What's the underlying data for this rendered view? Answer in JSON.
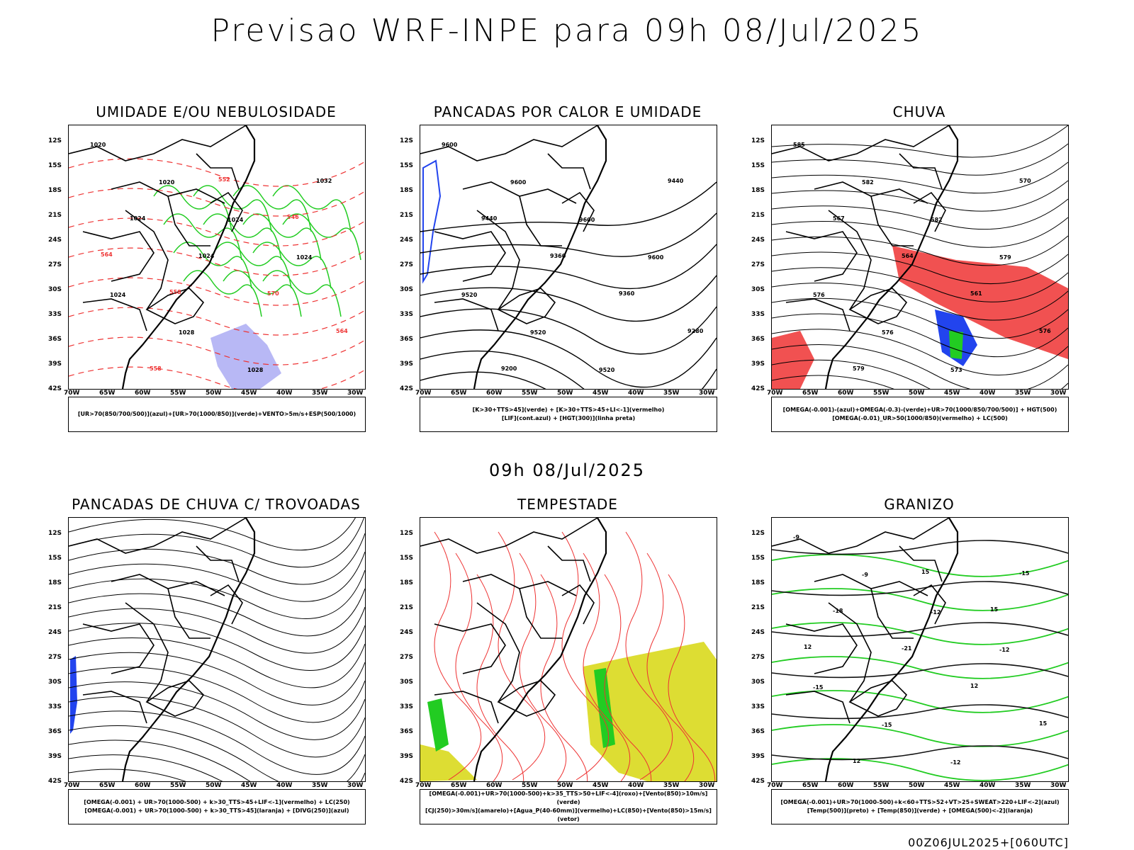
{
  "main_title": "Previsao WRF-INPE  para 09h 08/Jul/2025",
  "mid_title": "09h 08/Jul/2025",
  "footer": "00Z06JUL2025+[060UTC]",
  "lat_labels": [
    "12S",
    "15S",
    "18S",
    "21S",
    "24S",
    "27S",
    "30S",
    "33S",
    "36S",
    "39S",
    "42S"
  ],
  "lon_labels": [
    "70W",
    "65W",
    "60W",
    "55W",
    "50W",
    "45W",
    "40W",
    "35W",
    "30W"
  ],
  "panels": [
    {
      "title": "UMIDADE E/OU NEBULOSIDADE",
      "legend": [
        "[UR>70(850/700/500)](azul)+[UR>70(1000/850)](verde)+VENTO>5m/s+ESP(500/1000)"
      ],
      "contour_labels": [
        "1020",
        "1020",
        "1024",
        "1024",
        "1024",
        "1028",
        "1028",
        "1032",
        "1024",
        "1024",
        "570",
        "564",
        "558",
        "552",
        "546",
        "564",
        "558"
      ]
    },
    {
      "title": "PANCADAS POR CALOR E UMIDADE",
      "legend": [
        "[K>30+TTS>45](verde) + [K>30+TTS>45+LI<-1](vermelho)",
        "[LIF](cont.azul) + [HGT(300)](linha preta)"
      ],
      "contour_labels": [
        "9600",
        "9600",
        "9600",
        "9600",
        "9520",
        "9520",
        "9520",
        "9440",
        "9440",
        "9360",
        "9360",
        "9280",
        "9200"
      ]
    },
    {
      "title": "CHUVA",
      "legend": [
        "[OMEGA(-0.001)-(azul)+OMEGA(-0.3)-(verde)+UR>70(1000/850/700/500)] + HGT(500)",
        "[OMEGA(-0.01)_UR>50(1000/850)(vermelho) + LC(500)"
      ],
      "contour_labels": [
        "585",
        "582",
        "582",
        "579",
        "576",
        "576",
        "573",
        "570",
        "567",
        "564",
        "561",
        "576",
        "579"
      ]
    },
    {
      "title": "PANCADAS DE CHUVA C/ TROVOADAS",
      "legend": [
        "[OMEGA(-0.001) + UR>70(1000-500) + k>30_TTS>45+LIF<-1](vermelho) + LC(250)",
        "[OMEGA(-0.001) + UR>70(1000-500) + k>30_TTS>45](laranja) + [DIVG(250)](azul)"
      ],
      "contour_labels": []
    },
    {
      "title": "TEMPESTADE",
      "legend": [
        "[OMEGA(-0.001)+UR>70(1000-500)+k>35_TTS>50+LIF<-4](roxo)+[Vento(850)>10m/s](verde)",
        "[CJ(250)>30m/s](amarelo)+[Agua_P(40-60mm)](vermelho)+LC(850)+[Vento(850)>15m/s](vetor)"
      ],
      "contour_labels": []
    },
    {
      "title": "GRANIZO",
      "legend": [
        "[OMEGA(-0.001)+UR>70(1000-500)+k<60+TTS>52+VT>25+SWEAT>220+LIF<-2](azul)",
        "[Temp(500)](preto) + [Temp(850)](verde) + [OMEGA(500)<-2](laranja)"
      ],
      "contour_labels": [
        "-9",
        "-9",
        "-12",
        "-12",
        "-15",
        "-15",
        "-12",
        "-15",
        "-18",
        "-21",
        "12",
        "15",
        "12",
        "15",
        "15",
        "12"
      ]
    }
  ]
}
